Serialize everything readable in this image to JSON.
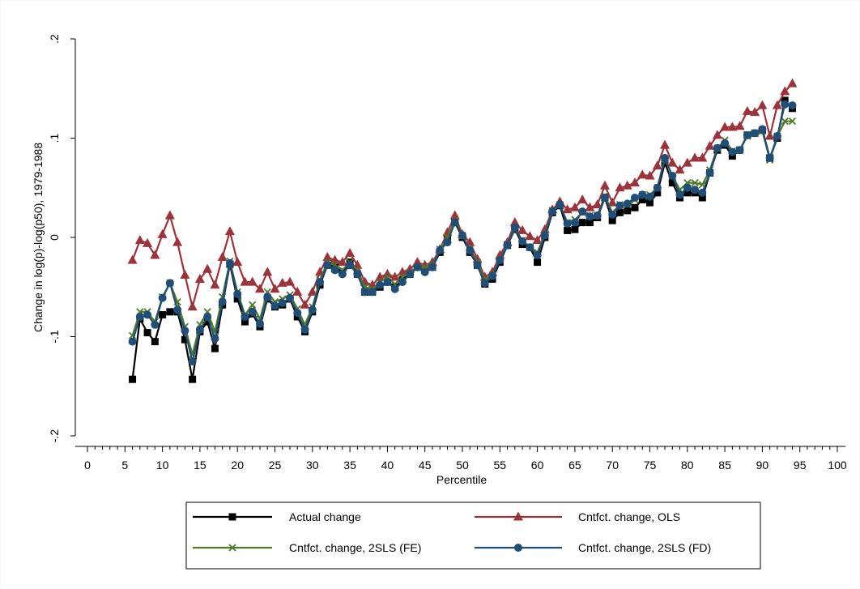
{
  "chart_data": {
    "type": "line",
    "xlabel": "Percentile",
    "ylabel": "Change in log(p)-log(p50), 1979-1988",
    "xlim": [
      0,
      100
    ],
    "ylim": [
      -0.2,
      0.2
    ],
    "x_ticks": [
      0,
      5,
      10,
      15,
      20,
      25,
      30,
      35,
      40,
      45,
      50,
      55,
      60,
      65,
      70,
      75,
      80,
      85,
      90,
      95,
      100
    ],
    "x_tick_labels": [
      "0",
      "5",
      "10",
      "15",
      "20",
      "25",
      "30",
      "35",
      "40",
      "45",
      "50",
      "55",
      "60",
      "65",
      "70",
      "75",
      "80",
      "85",
      "90",
      "95",
      "100"
    ],
    "y_ticks": [
      -0.2,
      -0.1,
      0,
      0.1,
      0.2
    ],
    "y_tick_labels": [
      "-.2",
      "-.1",
      "0",
      ".1",
      ".2"
    ],
    "grid": false,
    "legend_position": "bottom",
    "x": [
      6,
      7,
      8,
      9,
      10,
      11,
      12,
      13,
      14,
      15,
      16,
      17,
      18,
      19,
      20,
      21,
      22,
      23,
      24,
      25,
      26,
      27,
      28,
      29,
      30,
      31,
      32,
      33,
      34,
      35,
      36,
      37,
      38,
      39,
      40,
      41,
      42,
      43,
      44,
      45,
      46,
      47,
      48,
      49,
      50,
      51,
      52,
      53,
      54,
      55,
      56,
      57,
      58,
      59,
      60,
      61,
      62,
      63,
      64,
      65,
      66,
      67,
      68,
      69,
      70,
      71,
      72,
      73,
      74,
      75,
      76,
      77,
      78,
      79,
      80,
      81,
      82,
      83,
      84,
      85,
      86,
      87,
      88,
      89,
      90,
      91,
      92,
      93,
      94
    ],
    "series": [
      {
        "name": "Actual change",
        "color": "#000000",
        "marker": "square",
        "values": [
          -0.143,
          -0.082,
          -0.096,
          -0.105,
          -0.078,
          -0.075,
          -0.075,
          -0.103,
          -0.143,
          -0.095,
          -0.085,
          -0.112,
          -0.068,
          -0.027,
          -0.062,
          -0.085,
          -0.077,
          -0.09,
          -0.062,
          -0.07,
          -0.068,
          -0.062,
          -0.08,
          -0.095,
          -0.075,
          -0.048,
          -0.028,
          -0.027,
          -0.035,
          -0.025,
          -0.037,
          -0.055,
          -0.055,
          -0.05,
          -0.045,
          -0.05,
          -0.043,
          -0.037,
          -0.03,
          -0.032,
          -0.03,
          -0.015,
          0.0,
          0.015,
          0.0,
          -0.015,
          -0.028,
          -0.047,
          -0.042,
          -0.025,
          -0.008,
          0.008,
          -0.007,
          -0.01,
          -0.025,
          0.0,
          0.025,
          0.032,
          0.007,
          0.008,
          0.015,
          0.015,
          0.02,
          0.04,
          0.017,
          0.025,
          0.027,
          0.03,
          0.038,
          0.035,
          0.045,
          0.075,
          0.055,
          0.04,
          0.045,
          0.045,
          0.04,
          0.065,
          0.088,
          0.093,
          0.082,
          0.088,
          0.103,
          0.105,
          0.108,
          0.08,
          0.1,
          0.138,
          0.13
        ]
      },
      {
        "name": "Cntfct. change, OLS",
        "color": "#9c333a",
        "marker": "triangle",
        "values": [
          -0.023,
          -0.003,
          -0.006,
          -0.018,
          0.003,
          0.022,
          -0.005,
          -0.038,
          -0.07,
          -0.042,
          -0.032,
          -0.048,
          -0.02,
          0.006,
          -0.025,
          -0.045,
          -0.045,
          -0.052,
          -0.035,
          -0.052,
          -0.046,
          -0.045,
          -0.055,
          -0.068,
          -0.055,
          -0.035,
          -0.02,
          -0.023,
          -0.025,
          -0.016,
          -0.028,
          -0.045,
          -0.048,
          -0.04,
          -0.037,
          -0.04,
          -0.035,
          -0.032,
          -0.025,
          -0.028,
          -0.025,
          -0.012,
          0.005,
          0.022,
          0.003,
          -0.005,
          -0.022,
          -0.04,
          -0.035,
          -0.018,
          -0.005,
          0.015,
          0.007,
          0.001,
          -0.003,
          0.008,
          0.028,
          0.036,
          0.028,
          0.03,
          0.038,
          0.03,
          0.033,
          0.052,
          0.035,
          0.05,
          0.052,
          0.055,
          0.063,
          0.062,
          0.072,
          0.093,
          0.075,
          0.068,
          0.075,
          0.08,
          0.08,
          0.092,
          0.103,
          0.111,
          0.111,
          0.112,
          0.127,
          0.126,
          0.133,
          0.102,
          0.133,
          0.147,
          0.155
        ]
      },
      {
        "name": "Cntfct. change, 2SLS (FE)",
        "color": "#4e7a28",
        "marker": "x",
        "values": [
          -0.099,
          -0.075,
          -0.075,
          -0.085,
          -0.06,
          -0.046,
          -0.065,
          -0.09,
          -0.118,
          -0.088,
          -0.075,
          -0.095,
          -0.06,
          -0.024,
          -0.055,
          -0.078,
          -0.068,
          -0.082,
          -0.055,
          -0.065,
          -0.062,
          -0.058,
          -0.072,
          -0.088,
          -0.07,
          -0.043,
          -0.025,
          -0.028,
          -0.033,
          -0.025,
          -0.033,
          -0.05,
          -0.052,
          -0.045,
          -0.04,
          -0.047,
          -0.04,
          -0.035,
          -0.03,
          -0.03,
          -0.028,
          -0.012,
          0.0,
          0.017,
          0.002,
          -0.012,
          -0.025,
          -0.043,
          -0.038,
          -0.022,
          -0.007,
          0.008,
          -0.003,
          -0.01,
          -0.015,
          0.003,
          0.027,
          0.033,
          0.015,
          0.018,
          0.025,
          0.022,
          0.022,
          0.042,
          0.025,
          0.033,
          0.033,
          0.038,
          0.043,
          0.043,
          0.05,
          0.079,
          0.062,
          0.048,
          0.055,
          0.055,
          0.053,
          0.068,
          0.09,
          0.098,
          0.087,
          0.088,
          0.102,
          0.105,
          0.107,
          0.078,
          0.102,
          0.117,
          0.117
        ]
      },
      {
        "name": "Cntfct. change, 2SLS (FD)",
        "color": "#1f4e79",
        "marker": "circle",
        "values": [
          -0.105,
          -0.08,
          -0.078,
          -0.088,
          -0.061,
          -0.046,
          -0.073,
          -0.094,
          -0.125,
          -0.093,
          -0.08,
          -0.102,
          -0.065,
          -0.026,
          -0.057,
          -0.08,
          -0.075,
          -0.087,
          -0.06,
          -0.069,
          -0.066,
          -0.061,
          -0.076,
          -0.093,
          -0.073,
          -0.045,
          -0.028,
          -0.033,
          -0.037,
          -0.028,
          -0.037,
          -0.055,
          -0.055,
          -0.048,
          -0.045,
          -0.052,
          -0.045,
          -0.037,
          -0.03,
          -0.035,
          -0.03,
          -0.013,
          -0.005,
          0.015,
          0.002,
          -0.013,
          -0.028,
          -0.046,
          -0.039,
          -0.023,
          -0.008,
          0.01,
          -0.004,
          -0.01,
          -0.018,
          0.002,
          0.026,
          0.033,
          0.014,
          0.015,
          0.026,
          0.021,
          0.022,
          0.04,
          0.023,
          0.032,
          0.034,
          0.04,
          0.043,
          0.041,
          0.05,
          0.08,
          0.062,
          0.043,
          0.05,
          0.048,
          0.045,
          0.065,
          0.09,
          0.095,
          0.086,
          0.088,
          0.103,
          0.105,
          0.109,
          0.08,
          0.102,
          0.134,
          0.133
        ]
      }
    ]
  }
}
